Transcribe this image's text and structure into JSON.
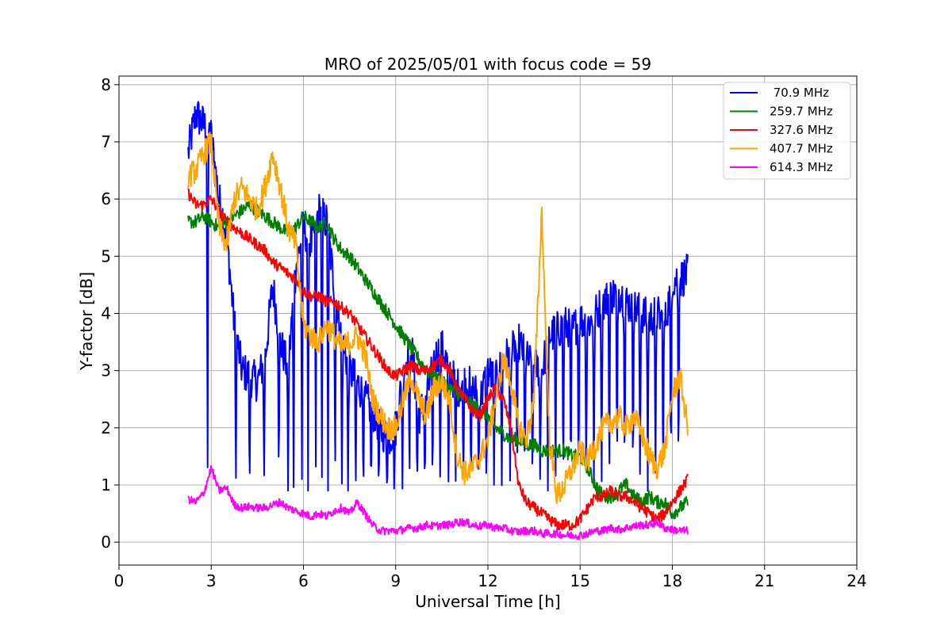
{
  "chart_data": {
    "type": "line",
    "title": "MRO of 2025/05/01 with focus code = 59",
    "xlabel": "Universal Time [h]",
    "ylabel": "Y-factor [dB]",
    "xlim": [
      0,
      24
    ],
    "ylim": [
      -0.4,
      8.15
    ],
    "xticks": [
      0,
      3,
      6,
      9,
      12,
      15,
      18,
      21,
      24
    ],
    "yticks": [
      0,
      1,
      2,
      3,
      4,
      5,
      6,
      7,
      8
    ],
    "grid": true,
    "legend_position": "top-right",
    "series": [
      {
        "name": " 70.9 MHz",
        "color": "#0000ff",
        "x": [
          2.25,
          2.5,
          2.75,
          3.0,
          3.25,
          3.5,
          3.75,
          4.0,
          4.25,
          4.5,
          4.75,
          5.0,
          5.25,
          5.5,
          5.75,
          6.0,
          6.25,
          6.5,
          6.75,
          7.0,
          7.25,
          7.5,
          7.75,
          8.0,
          8.25,
          8.5,
          8.75,
          9.0,
          9.25,
          9.5,
          9.75,
          10.0,
          10.25,
          10.5,
          10.75,
          11.0,
          11.25,
          11.5,
          11.75,
          12.0,
          12.25,
          12.5,
          12.75,
          13.0,
          13.25,
          13.5,
          13.75,
          14.0,
          14.25,
          14.5,
          14.75,
          15.0,
          15.25,
          15.5,
          15.75,
          16.0,
          16.25,
          16.5,
          16.75,
          17.0,
          17.25,
          17.5,
          17.75,
          18.0,
          18.25,
          18.5
        ],
        "y": [
          6.8,
          7.5,
          7.3,
          7.1,
          6.0,
          5.4,
          3.8,
          3.0,
          2.9,
          2.8,
          3.2,
          4.5,
          3.5,
          3.0,
          4.8,
          5.5,
          5.2,
          5.8,
          5.6,
          4.5,
          3.5,
          3.0,
          2.8,
          2.5,
          2.3,
          2.0,
          1.8,
          2.0,
          3.0,
          3.5,
          2.2,
          2.5,
          3.2,
          3.4,
          3.0,
          2.7,
          2.8,
          2.7,
          2.5,
          3.0,
          2.8,
          3.2,
          3.3,
          3.5,
          3.2,
          3.1,
          3.0,
          3.6,
          3.7,
          3.8,
          3.7,
          3.9,
          3.8,
          4.0,
          4.2,
          4.3,
          4.4,
          4.2,
          4.1,
          4.0,
          3.9,
          4.0,
          3.8,
          4.6,
          4.6,
          4.7
        ],
        "dips": [
          2.88,
          3.8,
          4.25,
          4.72,
          5.2,
          5.5,
          5.68,
          5.95,
          6.15,
          6.4,
          6.6,
          6.8,
          7.03,
          7.25,
          7.45,
          7.7,
          7.95,
          8.2,
          8.45,
          8.72,
          8.95,
          9.22,
          9.45,
          9.7,
          9.95,
          10.2,
          10.45,
          10.72,
          10.95,
          11.2,
          11.45,
          11.7,
          11.95,
          12.2,
          12.45,
          12.72,
          12.95,
          13.2,
          13.45,
          13.7,
          13.95,
          14.2,
          14.45,
          14.7,
          14.95,
          15.2,
          15.45,
          15.7,
          15.95,
          16.2,
          16.45,
          16.72,
          16.95,
          17.2,
          17.45,
          17.7,
          17.95,
          18.2
        ]
      },
      {
        "name": "259.7 MHz",
        "color": "#008000",
        "x": [
          2.25,
          2.5,
          2.75,
          3.0,
          3.25,
          3.5,
          3.75,
          4.0,
          4.25,
          4.5,
          4.75,
          5.0,
          5.25,
          5.5,
          5.75,
          6.0,
          6.25,
          6.5,
          6.75,
          7.0,
          7.25,
          7.5,
          7.75,
          8.0,
          8.25,
          8.5,
          8.75,
          9.0,
          9.25,
          9.5,
          9.75,
          10.0,
          10.25,
          10.5,
          10.75,
          11.0,
          11.25,
          11.5,
          11.75,
          12.0,
          12.25,
          12.5,
          12.75,
          13.0,
          13.25,
          13.5,
          13.75,
          14.0,
          14.25,
          14.5,
          14.75,
          15.0,
          15.25,
          15.5,
          15.75,
          16.0,
          16.25,
          16.5,
          16.75,
          17.0,
          17.25,
          17.5,
          17.75,
          18.0,
          18.25,
          18.5
        ],
        "y": [
          5.6,
          5.6,
          5.7,
          5.6,
          5.5,
          5.6,
          5.7,
          5.8,
          5.9,
          5.8,
          5.7,
          5.6,
          5.5,
          5.4,
          5.5,
          5.7,
          5.6,
          5.5,
          5.6,
          5.3,
          5.1,
          5.0,
          4.8,
          4.6,
          4.4,
          4.2,
          4.0,
          3.8,
          3.6,
          3.4,
          3.2,
          3.0,
          2.9,
          2.8,
          2.7,
          2.6,
          2.5,
          2.4,
          2.3,
          2.2,
          2.0,
          1.9,
          1.8,
          1.8,
          1.7,
          1.7,
          1.6,
          1.6,
          1.6,
          1.6,
          1.5,
          1.5,
          1.3,
          1.0,
          0.8,
          0.8,
          0.9,
          1.0,
          0.8,
          0.7,
          0.8,
          0.7,
          0.7,
          0.5,
          0.6,
          0.7
        ]
      },
      {
        "name": "327.6 MHz",
        "color": "#ff0000",
        "x": [
          2.25,
          2.5,
          2.75,
          3.0,
          3.25,
          3.5,
          3.75,
          4.0,
          4.25,
          4.5,
          4.75,
          5.0,
          5.25,
          5.5,
          5.75,
          6.0,
          6.25,
          6.5,
          6.75,
          7.0,
          7.25,
          7.5,
          7.75,
          8.0,
          8.25,
          8.5,
          8.75,
          9.0,
          9.25,
          9.5,
          9.75,
          10.0,
          10.25,
          10.5,
          10.75,
          11.0,
          11.25,
          11.5,
          11.75,
          12.0,
          12.25,
          12.5,
          12.75,
          13.0,
          13.25,
          13.5,
          13.75,
          14.0,
          14.25,
          14.5,
          14.75,
          15.0,
          15.25,
          15.5,
          15.75,
          16.0,
          16.25,
          16.5,
          16.75,
          17.0,
          17.25,
          17.5,
          17.75,
          18.0,
          18.25,
          18.5
        ],
        "y": [
          6.1,
          5.9,
          5.9,
          6.0,
          5.8,
          5.6,
          5.5,
          5.4,
          5.3,
          5.2,
          5.1,
          4.9,
          4.8,
          4.7,
          4.6,
          4.4,
          4.3,
          4.3,
          4.2,
          4.2,
          4.1,
          4.0,
          3.8,
          3.6,
          3.4,
          3.2,
          3.0,
          2.9,
          3.0,
          3.1,
          3.0,
          3.0,
          3.1,
          3.2,
          3.0,
          2.7,
          2.5,
          2.3,
          2.2,
          2.5,
          2.7,
          2.5,
          2.0,
          1.0,
          0.7,
          0.6,
          0.5,
          0.4,
          0.3,
          0.3,
          0.3,
          0.4,
          0.6,
          0.8,
          0.8,
          0.9,
          0.8,
          0.8,
          0.7,
          0.6,
          0.5,
          0.4,
          0.5,
          0.7,
          0.9,
          1.1
        ]
      },
      {
        "name": "407.7 MHz",
        "color": "#ffa500",
        "x": [
          2.25,
          2.5,
          2.75,
          3.0,
          3.25,
          3.5,
          3.75,
          4.0,
          4.25,
          4.5,
          4.75,
          5.0,
          5.25,
          5.5,
          5.75,
          6.0,
          6.25,
          6.5,
          6.75,
          7.0,
          7.25,
          7.5,
          7.75,
          8.0,
          8.25,
          8.5,
          8.75,
          9.0,
          9.25,
          9.5,
          9.75,
          10.0,
          10.25,
          10.5,
          10.75,
          11.0,
          11.25,
          11.5,
          11.75,
          12.0,
          12.25,
          12.5,
          12.75,
          13.0,
          13.25,
          13.5,
          13.75,
          14.0,
          14.25,
          14.5,
          14.75,
          15.0,
          15.25,
          15.5,
          15.75,
          16.0,
          16.25,
          16.5,
          16.75,
          17.0,
          17.25,
          17.5,
          17.75,
          18.0,
          18.25,
          18.5
        ],
        "y": [
          6.4,
          6.5,
          6.8,
          7.0,
          5.5,
          5.2,
          6.0,
          6.2,
          6.0,
          5.8,
          6.2,
          6.8,
          6.2,
          5.5,
          5.2,
          3.8,
          3.6,
          3.5,
          3.8,
          3.6,
          3.4,
          3.5,
          3.6,
          3.3,
          2.5,
          2.2,
          2.0,
          2.0,
          2.5,
          2.9,
          2.5,
          2.2,
          2.7,
          2.8,
          2.5,
          1.5,
          1.2,
          1.3,
          1.5,
          1.8,
          2.5,
          3.2,
          2.8,
          2.0,
          1.8,
          2.5,
          5.8,
          1.8,
          0.8,
          1.0,
          1.3,
          1.6,
          1.4,
          1.7,
          2.0,
          2.1,
          2.2,
          2.0,
          2.2,
          1.9,
          1.5,
          1.3,
          1.6,
          2.6,
          2.9,
          2.0
        ]
      },
      {
        "name": "614.3 MHz",
        "color": "#ff00ff",
        "x": [
          2.25,
          2.5,
          2.75,
          3.0,
          3.25,
          3.5,
          3.75,
          4.0,
          4.25,
          4.5,
          4.75,
          5.0,
          5.25,
          5.5,
          5.75,
          6.0,
          6.25,
          6.5,
          6.75,
          7.0,
          7.25,
          7.5,
          7.75,
          8.0,
          8.25,
          8.5,
          8.75,
          9.0,
          9.25,
          9.5,
          9.75,
          10.0,
          10.25,
          10.5,
          10.75,
          11.0,
          11.25,
          11.5,
          11.75,
          12.0,
          12.25,
          12.5,
          12.75,
          13.0,
          13.25,
          13.5,
          13.75,
          14.0,
          14.25,
          14.5,
          14.75,
          15.0,
          15.25,
          15.5,
          15.75,
          16.0,
          16.25,
          16.5,
          16.75,
          17.0,
          17.25,
          17.5,
          17.75,
          18.0,
          18.25,
          18.5
        ],
        "y": [
          0.75,
          0.7,
          0.85,
          1.3,
          0.9,
          0.95,
          0.65,
          0.6,
          0.62,
          0.6,
          0.6,
          0.65,
          0.7,
          0.6,
          0.55,
          0.5,
          0.45,
          0.5,
          0.45,
          0.55,
          0.6,
          0.5,
          0.7,
          0.5,
          0.3,
          0.2,
          0.2,
          0.2,
          0.22,
          0.25,
          0.25,
          0.3,
          0.28,
          0.3,
          0.3,
          0.35,
          0.35,
          0.3,
          0.28,
          0.3,
          0.25,
          0.25,
          0.2,
          0.18,
          0.2,
          0.2,
          0.15,
          0.15,
          0.15,
          0.12,
          0.12,
          0.12,
          0.15,
          0.2,
          0.2,
          0.25,
          0.22,
          0.25,
          0.28,
          0.3,
          0.3,
          0.35,
          0.25,
          0.22,
          0.2,
          0.2
        ]
      }
    ]
  }
}
